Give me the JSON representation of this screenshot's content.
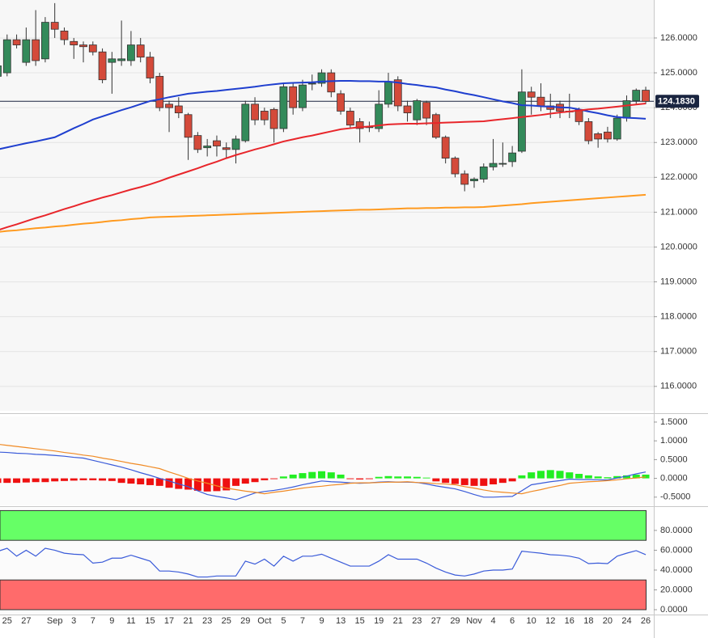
{
  "chart_data": [
    {
      "type": "candlestick",
      "categories": [
        null,
        "25",
        null,
        "27",
        null,
        null,
        "Sep",
        null,
        "3",
        null,
        "7",
        null,
        "9",
        null,
        "11",
        null,
        "15",
        null,
        "17",
        null,
        "21",
        null,
        "23",
        null,
        "25",
        null,
        "29",
        null,
        "Oct",
        null,
        "5",
        null,
        "7",
        null,
        "9",
        null,
        "13",
        null,
        "15",
        null,
        "19",
        null,
        "21",
        null,
        "23",
        null,
        "27",
        null,
        "29",
        null,
        "Nov",
        null,
        "4",
        null,
        "6",
        null,
        "10",
        null,
        "12",
        null,
        "16",
        null,
        "18",
        null,
        "20",
        null,
        "24",
        null,
        "26"
      ],
      "open": [
        124.9,
        125.0,
        125.95,
        125.3,
        125.95,
        125.4,
        126.45,
        126.2,
        125.9,
        125.8,
        125.8,
        125.6,
        125.3,
        125.35,
        125.35,
        125.8,
        125.45,
        124.9,
        124.1,
        124.05,
        123.8,
        123.2,
        122.85,
        123.05,
        122.85,
        122.8,
        123.05,
        124.1,
        123.9,
        123.95,
        123.4,
        124.6,
        124.0,
        124.7,
        124.7,
        125.0,
        124.4,
        123.9,
        123.6,
        123.45,
        123.4,
        124.1,
        124.8,
        124.05,
        123.65,
        124.15,
        123.8,
        123.15,
        122.55,
        122.1,
        121.9,
        121.95,
        122.3,
        122.4,
        122.45,
        122.75,
        124.45,
        124.3,
        124.05,
        124.1,
        123.9,
        123.95,
        123.6,
        123.25,
        123.3,
        123.1,
        123.7,
        124.2,
        124.5
      ],
      "high": [
        125.4,
        126.1,
        126.1,
        126.3,
        126.8,
        126.6,
        127.0,
        126.3,
        126.0,
        125.9,
        125.9,
        125.7,
        125.6,
        126.5,
        126.2,
        126.0,
        125.6,
        125.0,
        124.2,
        124.3,
        123.85,
        123.3,
        123.1,
        123.2,
        123.0,
        123.2,
        124.2,
        124.3,
        124.0,
        124.0,
        124.7,
        124.7,
        124.8,
        124.95,
        125.1,
        125.1,
        124.5,
        124.0,
        123.7,
        123.6,
        124.5,
        125.0,
        124.9,
        124.2,
        124.25,
        124.2,
        123.85,
        123.2,
        122.6,
        122.2,
        122.0,
        122.4,
        123.1,
        123.0,
        122.9,
        125.1,
        124.6,
        124.7,
        124.4,
        124.2,
        124.4,
        124.0,
        123.7,
        123.3,
        123.45,
        123.8,
        124.35,
        124.55,
        124.6
      ],
      "low": [
        124.8,
        124.9,
        125.7,
        125.2,
        125.2,
        125.3,
        126.0,
        125.8,
        125.4,
        125.3,
        125.5,
        124.7,
        124.4,
        125.2,
        125.2,
        125.3,
        124.7,
        123.9,
        123.3,
        123.7,
        122.5,
        122.7,
        122.6,
        122.6,
        122.55,
        122.4,
        123.0,
        123.5,
        123.5,
        123.0,
        123.3,
        123.8,
        123.9,
        124.5,
        124.6,
        124.3,
        123.8,
        123.4,
        123.0,
        123.3,
        123.3,
        124.0,
        123.9,
        123.6,
        123.5,
        123.5,
        123.1,
        122.4,
        122.0,
        121.6,
        121.7,
        121.85,
        122.2,
        122.3,
        122.3,
        122.7,
        123.8,
        123.9,
        123.7,
        123.7,
        123.7,
        123.5,
        122.95,
        122.85,
        123.0,
        123.05,
        123.6,
        124.1,
        124.1
      ],
      "close": [
        125.2,
        125.95,
        125.8,
        125.95,
        125.35,
        126.45,
        126.25,
        125.95,
        125.8,
        125.75,
        125.6,
        124.8,
        125.4,
        125.4,
        125.8,
        125.45,
        124.85,
        124.0,
        124.0,
        123.85,
        123.15,
        122.8,
        122.9,
        122.9,
        122.8,
        123.1,
        124.1,
        123.65,
        123.65,
        123.4,
        124.6,
        124.0,
        124.65,
        124.7,
        125.0,
        124.45,
        123.9,
        123.5,
        123.4,
        123.45,
        124.1,
        124.75,
        124.05,
        123.85,
        124.2,
        123.7,
        123.15,
        122.55,
        122.1,
        121.8,
        121.95,
        122.3,
        122.4,
        122.4,
        122.7,
        124.45,
        124.3,
        124.05,
        123.95,
        123.9,
        123.9,
        123.6,
        123.05,
        123.1,
        123.1,
        123.7,
        124.2,
        124.5,
        124.18
      ],
      "up_color": "#338a5a",
      "down_color": "#d44a3a",
      "last": {
        "value": 124.183,
        "label": "124.1830"
      },
      "series": [
        {
          "color": "#1f3fcf",
          "values": [
            122.8,
            122.86,
            122.92,
            122.98,
            123.03,
            123.09,
            123.15,
            123.28,
            123.41,
            123.53,
            123.66,
            123.75,
            123.84,
            123.93,
            124.01,
            124.1,
            124.19,
            124.24,
            124.3,
            124.35,
            124.4,
            124.43,
            124.46,
            124.48,
            124.51,
            124.54,
            124.57,
            124.6,
            124.64,
            124.67,
            124.7,
            124.71,
            124.72,
            124.73,
            124.75,
            124.76,
            124.77,
            124.77,
            124.76,
            124.76,
            124.75,
            124.75,
            124.72,
            124.68,
            124.65,
            124.61,
            124.58,
            124.52,
            124.47,
            124.41,
            124.36,
            124.3,
            124.24,
            124.18,
            124.13,
            124.07,
            124.06,
            124.04,
            124.03,
            124.01,
            124.0,
            123.95,
            123.89,
            123.84,
            123.78,
            123.73,
            123.71,
            123.7,
            123.68
          ]
        },
        {
          "color": "#e8262b",
          "values": [
            120.48,
            120.57,
            120.65,
            120.74,
            120.83,
            120.91,
            121.0,
            121.09,
            121.17,
            121.26,
            121.34,
            121.42,
            121.49,
            121.57,
            121.65,
            121.72,
            121.8,
            121.89,
            121.99,
            122.08,
            122.17,
            122.26,
            122.36,
            122.45,
            122.55,
            122.64,
            122.72,
            122.8,
            122.87,
            122.95,
            123.03,
            123.09,
            123.15,
            123.2,
            123.26,
            123.32,
            123.38,
            123.41,
            123.44,
            123.46,
            123.49,
            123.52,
            123.53,
            123.54,
            123.54,
            123.55,
            123.56,
            123.57,
            123.58,
            123.59,
            123.6,
            123.61,
            123.64,
            123.67,
            123.7,
            123.73,
            123.76,
            123.79,
            123.83,
            123.86,
            123.89,
            123.92,
            123.95,
            123.97,
            124.0,
            124.03,
            124.06,
            124.09,
            124.12
          ]
        },
        {
          "color": "#ff9a1f",
          "values": [
            120.43,
            120.46,
            120.48,
            120.51,
            120.54,
            120.56,
            120.59,
            120.61,
            120.64,
            120.67,
            120.69,
            120.72,
            120.75,
            120.77,
            120.8,
            120.82,
            120.85,
            120.86,
            120.87,
            120.88,
            120.89,
            120.9,
            120.91,
            120.92,
            120.93,
            120.94,
            120.95,
            120.96,
            120.97,
            120.98,
            120.99,
            121.0,
            121.01,
            121.02,
            121.03,
            121.04,
            121.05,
            121.06,
            121.07,
            121.07,
            121.08,
            121.09,
            121.1,
            121.11,
            121.11,
            121.12,
            121.12,
            121.13,
            121.13,
            121.14,
            121.14,
            121.15,
            121.17,
            121.19,
            121.21,
            121.23,
            121.26,
            121.28,
            121.3,
            121.32,
            121.34,
            121.36,
            121.38,
            121.4,
            121.42,
            121.44,
            121.46,
            121.48,
            121.5
          ]
        }
      ],
      "ylim": [
        115.3,
        127.09
      ],
      "yticks": [
        {
          "value": 116,
          "label": "116.0000"
        },
        {
          "value": 117,
          "label": "117.0000"
        },
        {
          "value": 118,
          "label": "118.0000"
        },
        {
          "value": 119,
          "label": "119.0000"
        },
        {
          "value": 120,
          "label": "120.0000"
        },
        {
          "value": 121,
          "label": "121.0000"
        },
        {
          "value": 122,
          "label": "122.0000"
        },
        {
          "value": 123,
          "label": "123.0000"
        },
        {
          "value": 124,
          "label": "124.0000"
        },
        {
          "value": 125,
          "label": "125.0000"
        },
        {
          "value": 126,
          "label": "126.0000"
        }
      ],
      "grid": true
    },
    {
      "type": "macd",
      "histogram": [
        -0.12,
        -0.12,
        -0.12,
        -0.11,
        -0.1,
        -0.1,
        -0.08,
        -0.07,
        -0.06,
        -0.05,
        -0.05,
        -0.06,
        -0.07,
        -0.12,
        -0.14,
        -0.16,
        -0.18,
        -0.2,
        -0.25,
        -0.28,
        -0.3,
        -0.33,
        -0.35,
        -0.34,
        -0.32,
        -0.2,
        -0.14,
        -0.1,
        -0.05,
        -0.02,
        0.05,
        0.1,
        0.14,
        0.17,
        0.19,
        0.16,
        0.1,
        -0.02,
        -0.03,
        -0.02,
        0.04,
        0.06,
        0.05,
        0.05,
        0.04,
        0.02,
        -0.08,
        -0.12,
        -0.15,
        -0.18,
        -0.2,
        -0.2,
        -0.16,
        -0.12,
        -0.08,
        0.08,
        0.16,
        0.2,
        0.22,
        0.2,
        0.16,
        0.12,
        0.08,
        0.05,
        0.03,
        0.06,
        0.08,
        0.1,
        0.1
      ],
      "up_color": "#22ee22",
      "down_color": "#ee1111",
      "series": [
        {
          "color": "#3a5bd9",
          "values": [
            0.7,
            0.69,
            0.67,
            0.66,
            0.64,
            0.63,
            0.61,
            0.59,
            0.56,
            0.54,
            0.48,
            0.42,
            0.36,
            0.3,
            0.23,
            0.15,
            0.08,
            0.0,
            -0.07,
            -0.15,
            -0.22,
            -0.33,
            -0.43,
            -0.48,
            -0.52,
            -0.57,
            -0.48,
            -0.39,
            -0.35,
            -0.32,
            -0.28,
            -0.23,
            -0.17,
            -0.12,
            -0.07,
            -0.09,
            -0.1,
            -0.12,
            -0.13,
            -0.12,
            -0.1,
            -0.09,
            -0.1,
            -0.1,
            -0.11,
            -0.15,
            -0.2,
            -0.24,
            -0.28,
            -0.35,
            -0.43,
            -0.5,
            -0.5,
            -0.49,
            -0.48,
            -0.33,
            -0.17,
            -0.13,
            -0.09,
            -0.06,
            -0.02,
            -0.03,
            -0.03,
            -0.04,
            -0.04,
            0.01,
            0.06,
            0.12,
            0.17
          ]
        },
        {
          "color": "#f08a24",
          "values": [
            0.91,
            0.88,
            0.85,
            0.82,
            0.79,
            0.76,
            0.73,
            0.69,
            0.66,
            0.62,
            0.59,
            0.54,
            0.5,
            0.45,
            0.4,
            0.36,
            0.31,
            0.26,
            0.17,
            0.09,
            0.0,
            -0.07,
            -0.13,
            -0.2,
            -0.26,
            -0.3,
            -0.34,
            -0.37,
            -0.41,
            -0.37,
            -0.34,
            -0.3,
            -0.26,
            -0.23,
            -0.21,
            -0.18,
            -0.16,
            -0.13,
            -0.12,
            -0.12,
            -0.11,
            -0.1,
            -0.1,
            -0.09,
            -0.11,
            -0.12,
            -0.14,
            -0.15,
            -0.17,
            -0.22,
            -0.26,
            -0.31,
            -0.35,
            -0.37,
            -0.39,
            -0.41,
            -0.35,
            -0.3,
            -0.24,
            -0.19,
            -0.13,
            -0.11,
            -0.09,
            -0.08,
            -0.06,
            -0.04,
            -0.01,
            0.01,
            0.04
          ]
        }
      ],
      "ylim": [
        -0.72,
        1.65
      ],
      "yticks": [
        {
          "value": -0.5,
          "label": "-0.5000"
        },
        {
          "value": 0,
          "label": "0.0000"
        },
        {
          "value": 0.5,
          "label": "0.5000"
        },
        {
          "value": 1,
          "label": "1.0000"
        },
        {
          "value": 1.5,
          "label": "1.5000"
        }
      ]
    },
    {
      "type": "rsi",
      "zones": [
        {
          "range": [
            70,
            100
          ],
          "color": "#66ff66"
        },
        {
          "range": [
            0,
            30
          ],
          "color": "#ff6b6b"
        }
      ],
      "series": [
        {
          "color": "#3a5bd9",
          "values": [
            58.8,
            62,
            54,
            60,
            54,
            62,
            60,
            57,
            56,
            55.5,
            47,
            48,
            52,
            52,
            55,
            52,
            49,
            39,
            39,
            38,
            36,
            33,
            33,
            34,
            34,
            34,
            49,
            46,
            51,
            44,
            54,
            49,
            54,
            54,
            56,
            52,
            48,
            44,
            44,
            44,
            49,
            55.5,
            51,
            51,
            51,
            47,
            42,
            38,
            35,
            34,
            36,
            39,
            40,
            40,
            41,
            59,
            58,
            57,
            55.5,
            55,
            54,
            52,
            46.5,
            47,
            46.5,
            54,
            57,
            59.6,
            55.5
          ]
        }
      ],
      "ylim": [
        -4.9,
        102.8
      ],
      "yticks": [
        {
          "value": 0,
          "label": "0.0000"
        },
        {
          "value": 20,
          "label": "20.0000"
        },
        {
          "value": 40,
          "label": "40.0000"
        },
        {
          "value": 60,
          "label": "60.0000"
        },
        {
          "value": 80,
          "label": "80.0000"
        }
      ]
    }
  ]
}
